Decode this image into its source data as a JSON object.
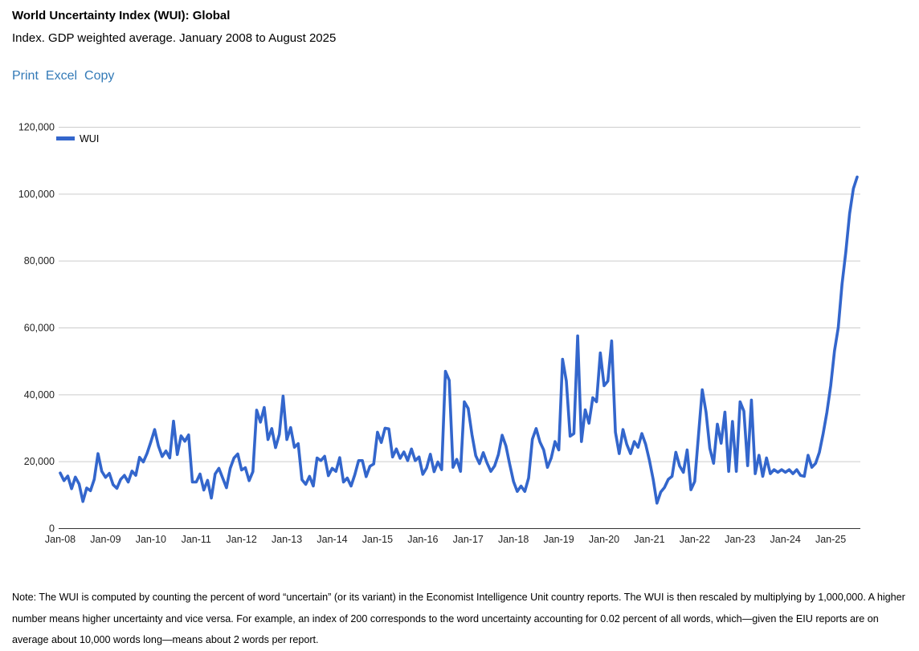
{
  "header": {
    "title": "World Uncertainty Index (WUI): Global",
    "subtitle": "Index. GDP weighted average. January 2008 to August 2025",
    "actions": {
      "print": "Print",
      "excel": "Excel",
      "copy": "Copy"
    }
  },
  "note": "Note: The WUI is computed by counting the percent of word “uncertain” (or its variant) in the Economist Intelligence Unit country reports. The WUI is then rescaled by multiplying by 1,000,000. A higher number means higher uncertainty and vice versa. For example, an index of 200 corresponds to the word uncertainty accounting for 0.02 percent of all words, which—given the EIU reports are on average about 10,000 words long—means about 2 words per report.",
  "colors": {
    "line": "#3366cc",
    "link": "#337ab7",
    "grid": "#cccccc",
    "axis_line": "#333333",
    "tick_text": "#222222"
  },
  "chart_data": {
    "type": "line",
    "title": "World Uncertainty Index (WUI): Global",
    "xlabel": "",
    "ylabel": "",
    "x_frequency": "monthly",
    "x_start": "Jan-2008",
    "x_end": "Aug-2025",
    "x_tick_labels": [
      "Jan-08",
      "Jan-09",
      "Jan-10",
      "Jan-11",
      "Jan-12",
      "Jan-13",
      "Jan-14",
      "Jan-15",
      "Jan-16",
      "Jan-17",
      "Jan-18",
      "Jan-19",
      "Jan-20",
      "Jan-21",
      "Jan-22",
      "Jan-23",
      "Jan-24",
      "Jan-25"
    ],
    "y_ticks": [
      0,
      20000,
      40000,
      60000,
      80000,
      100000,
      120000
    ],
    "y_tick_labels": [
      "0",
      "20,000",
      "40,000",
      "60,000",
      "80,000",
      "100,000",
      "120,000"
    ],
    "ylim": [
      0,
      120000
    ],
    "grid": true,
    "legend_position": "top-left-inside",
    "series": [
      {
        "name": "WUI",
        "color": "#3366cc",
        "values": [
          16500,
          14200,
          15600,
          11800,
          15300,
          13200,
          8000,
          12000,
          11200,
          14600,
          22300,
          17000,
          15200,
          16400,
          13000,
          11900,
          14600,
          15800,
          13800,
          17100,
          15800,
          21200,
          19800,
          22400,
          25800,
          29500,
          24600,
          21400,
          23100,
          21000,
          32000,
          22000,
          27600,
          26000,
          27900,
          13800,
          13800,
          16200,
          11400,
          14300,
          9000,
          16200,
          17900,
          15000,
          12100,
          17900,
          21000,
          22200,
          17400,
          18100,
          14200,
          16900,
          35300,
          31700,
          36100,
          26500,
          29800,
          24100,
          28000,
          39500,
          26500,
          30100,
          24200,
          25300,
          14500,
          13100,
          15500,
          12600,
          21000,
          20200,
          21500,
          15700,
          17900,
          17000,
          21100,
          13800,
          15000,
          12600,
          16000,
          20200,
          20200,
          15400,
          18500,
          19200,
          28700,
          25600,
          29900,
          29700,
          21300,
          23700,
          20900,
          22800,
          20200,
          23700,
          20200,
          21300,
          16100,
          18000,
          22100,
          16900,
          19800,
          17500,
          46900,
          44200,
          18200,
          20600,
          17000,
          37800,
          35800,
          28000,
          21700,
          19300,
          22600,
          19500,
          17000,
          18600,
          22000,
          27800,
          24600,
          19100,
          14000,
          11000,
          12600,
          11000,
          15000,
          26600,
          29800,
          25800,
          23400,
          18200,
          21000,
          25900,
          23400,
          50500,
          44000,
          27500,
          28300,
          57500,
          25900,
          35400,
          31400,
          39000,
          37800,
          52400,
          42600,
          44000,
          56000,
          28700,
          22300,
          29500,
          25100,
          22300,
          25900,
          24200,
          28300,
          25100,
          20300,
          14600,
          7500,
          10800,
          12200,
          14600,
          15500,
          22700,
          18600,
          16700,
          23400,
          11500,
          14000,
          27800,
          41400,
          34700,
          23900,
          19400,
          31100,
          25400,
          34700,
          17000,
          31900,
          17000,
          37800,
          35000,
          18700,
          38300,
          16300,
          21800,
          15500,
          21000,
          16300,
          17500,
          16700,
          17500,
          16700,
          17500,
          16300,
          17500,
          15800,
          15500,
          21800,
          18200,
          19400,
          22700,
          28300,
          34700,
          42600,
          53000,
          60000,
          73000,
          82600,
          94000,
          101500,
          105000
        ]
      }
    ]
  }
}
